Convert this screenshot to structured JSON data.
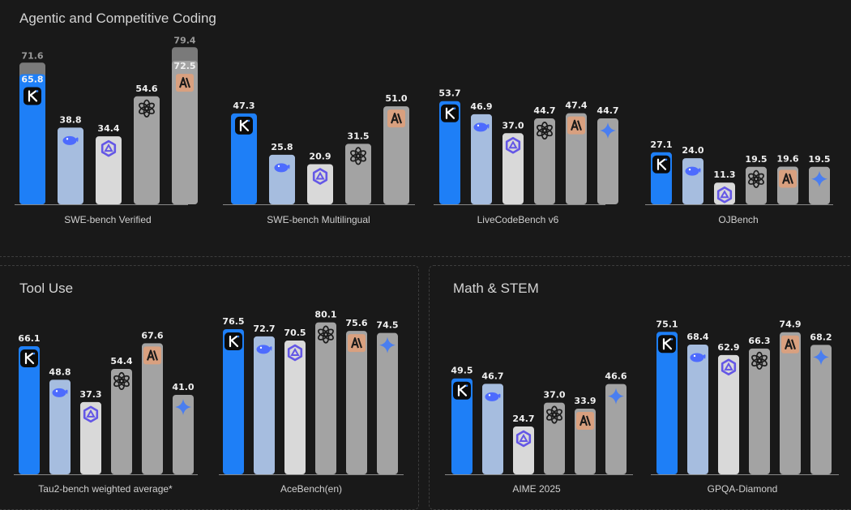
{
  "sections": {
    "coding": {
      "title": "Agentic and Competitive Coding"
    },
    "tool": {
      "title": "Tool Use"
    },
    "math": {
      "title": "Math & STEM"
    }
  },
  "colors": {
    "primary": "#1e7ff7",
    "model2": "#a6bddf",
    "model3": "#d9d9d9",
    "other": "#a3a3a3",
    "stacked": "#7a7a7a",
    "anthropic": "#d9a07f",
    "baseline": "#888888",
    "background": "#191919"
  },
  "icons": [
    "kimi-icon",
    "deepseek-icon",
    "qwen-icon",
    "openai-icon",
    "anthropic-icon",
    "gemini-icon"
  ],
  "chart_data": [
    {
      "type": "bar",
      "section": "coding",
      "xlabel": "SWE-bench Verified",
      "values": [
        65.8,
        38.8,
        34.4,
        54.6,
        72.5
      ],
      "stacked_values": [
        71.6,
        null,
        null,
        null,
        79.4
      ],
      "icons": [
        "kimi-icon",
        "deepseek-icon",
        "qwen-icon",
        "openai-icon",
        "anthropic-icon"
      ],
      "colors": [
        "primary",
        "model2",
        "model3",
        "other",
        "other"
      ]
    },
    {
      "type": "bar",
      "section": "coding",
      "xlabel": "SWE-bench Multilingual",
      "values": [
        47.3,
        25.8,
        20.9,
        31.5,
        51.0
      ],
      "icons": [
        "kimi-icon",
        "deepseek-icon",
        "qwen-icon",
        "openai-icon",
        "anthropic-icon"
      ],
      "colors": [
        "primary",
        "model2",
        "model3",
        "other",
        "other"
      ]
    },
    {
      "type": "bar",
      "section": "coding",
      "xlabel": "LiveCodeBench v6",
      "values": [
        53.7,
        46.9,
        37.0,
        44.7,
        47.4,
        44.7
      ],
      "icons": [
        "kimi-icon",
        "deepseek-icon",
        "qwen-icon",
        "openai-icon",
        "anthropic-icon",
        "gemini-icon"
      ],
      "colors": [
        "primary",
        "model2",
        "model3",
        "other",
        "other",
        "other"
      ]
    },
    {
      "type": "bar",
      "section": "coding",
      "xlabel": "OJBench",
      "values": [
        27.1,
        24.0,
        11.3,
        19.5,
        19.6,
        19.5
      ],
      "icons": [
        "kimi-icon",
        "deepseek-icon",
        "qwen-icon",
        "openai-icon",
        "anthropic-icon",
        "gemini-icon"
      ],
      "colors": [
        "primary",
        "model2",
        "model3",
        "other",
        "other",
        "other"
      ]
    },
    {
      "type": "bar",
      "section": "tool",
      "xlabel": "Tau2-bench weighted average*",
      "values": [
        66.1,
        48.8,
        37.3,
        54.4,
        67.6,
        41.0
      ],
      "icons": [
        "kimi-icon",
        "deepseek-icon",
        "qwen-icon",
        "openai-icon",
        "anthropic-icon",
        "gemini-icon"
      ],
      "colors": [
        "primary",
        "model2",
        "model3",
        "other",
        "other",
        "other"
      ]
    },
    {
      "type": "bar",
      "section": "tool",
      "xlabel": "AceBench(en)",
      "values": [
        76.5,
        72.7,
        70.5,
        80.1,
        75.6,
        74.5
      ],
      "icons": [
        "kimi-icon",
        "deepseek-icon",
        "qwen-icon",
        "openai-icon",
        "anthropic-icon",
        "gemini-icon"
      ],
      "colors": [
        "primary",
        "model2",
        "model3",
        "other",
        "other",
        "other"
      ]
    },
    {
      "type": "bar",
      "section": "math",
      "xlabel": "AIME 2025",
      "values": [
        49.5,
        46.7,
        24.7,
        37.0,
        33.9,
        46.6
      ],
      "icons": [
        "kimi-icon",
        "deepseek-icon",
        "qwen-icon",
        "openai-icon",
        "anthropic-icon",
        "gemini-icon"
      ],
      "colors": [
        "primary",
        "model2",
        "model3",
        "other",
        "other",
        "other"
      ]
    },
    {
      "type": "bar",
      "section": "math",
      "xlabel": "GPQA-Diamond",
      "values": [
        75.1,
        68.4,
        62.9,
        66.3,
        74.9,
        68.2
      ],
      "icons": [
        "kimi-icon",
        "deepseek-icon",
        "qwen-icon",
        "openai-icon",
        "anthropic-icon",
        "gemini-icon"
      ],
      "colors": [
        "primary",
        "model2",
        "model3",
        "other",
        "other",
        "other"
      ]
    }
  ]
}
